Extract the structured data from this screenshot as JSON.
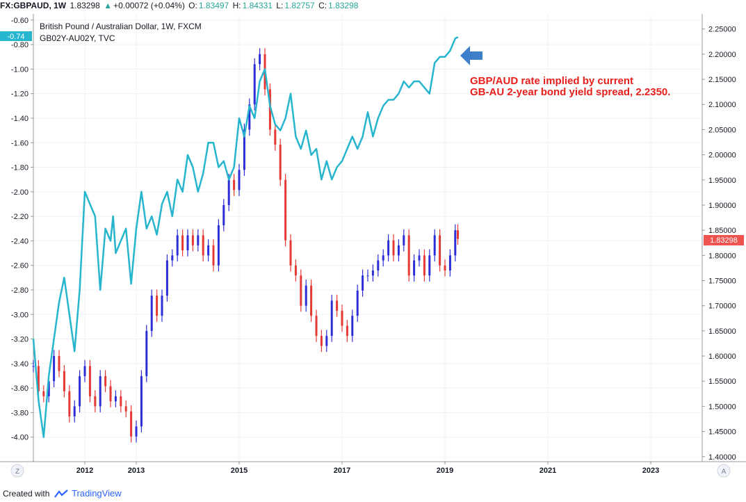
{
  "header": {
    "symbol": "FX:GBPAUD, 1W",
    "last": "1.83298",
    "change_arrow": "▲",
    "change": "+0.00072 (+0.04%)",
    "o_label": "O:",
    "o_value": "1.83497",
    "h_label": "H:",
    "h_value": "1.84331",
    "l_label": "L:",
    "l_value": "1.82757",
    "c_label": "C:",
    "c_value": "1.83298",
    "up_color": "#26a69a"
  },
  "legend": {
    "main_series": "British Pound / Australian Dollar, 1W, FXCM",
    "overlay_series": "GB02Y-AU02Y, TVC"
  },
  "annotation": {
    "line1": "GBP/AUD rate implied by current",
    "line2": "GB-AU 2-year bond yield spread, 2.2350.",
    "color": "#e8201c",
    "arrow_icon": "left-arrow-icon",
    "arrow_color": "#3d7fc9"
  },
  "price_badge": {
    "value": "1.83298",
    "color": "#ef5350"
  },
  "spread_badge": {
    "value": "-0.74",
    "color": "#26b5cc"
  },
  "axis_buttons": {
    "left": "Z",
    "right": "A"
  },
  "footer": {
    "prefix": "Created with",
    "brand": "TradingView"
  },
  "chart_data": {
    "type": "line",
    "x_axis": {
      "tick_labels": [
        "2012",
        "2013",
        "2015",
        "2017",
        "2019",
        "2021",
        "2023"
      ],
      "range": [
        2011.0,
        2024.0
      ]
    },
    "left_axis": {
      "tick_labels": [
        "-0.60",
        "-0.80",
        "-1.00",
        "-1.20",
        "-1.40",
        "-1.60",
        "-1.80",
        "-2.00",
        "-2.20",
        "-2.40",
        "-2.60",
        "-2.80",
        "-3.00",
        "-3.20",
        "-3.40",
        "-3.60",
        "-3.80",
        "-4.00"
      ],
      "range": [
        -4.2,
        -0.55
      ]
    },
    "right_axis": {
      "tick_labels": [
        "2.25000",
        "2.20000",
        "2.15000",
        "2.10000",
        "2.05000",
        "2.00000",
        "1.95000",
        "1.90000",
        "1.85000",
        "1.80000",
        "1.75000",
        "1.70000",
        "1.65000",
        "1.60000",
        "1.55000",
        "1.50000",
        "1.45000",
        "1.40000"
      ],
      "range": [
        1.39,
        2.28
      ]
    },
    "grid": true,
    "series": [
      {
        "name": "GB02Y-AU02Y, TVC",
        "axis": "left",
        "style": "line",
        "color": "#26b5cc",
        "x": [
          2011.0,
          2011.1,
          2011.2,
          2011.3,
          2011.4,
          2011.5,
          2011.6,
          2011.7,
          2011.8,
          2011.9,
          2012.0,
          2012.1,
          2012.2,
          2012.3,
          2012.4,
          2012.5,
          2012.55,
          2012.6,
          2012.7,
          2012.8,
          2012.9,
          2013.0,
          2013.1,
          2013.2,
          2013.3,
          2013.4,
          2013.5,
          2013.6,
          2013.7,
          2013.8,
          2013.9,
          2014.0,
          2014.1,
          2014.2,
          2014.3,
          2014.4,
          2014.5,
          2014.6,
          2014.7,
          2014.8,
          2014.9,
          2015.0,
          2015.1,
          2015.2,
          2015.3,
          2015.4,
          2015.5,
          2015.6,
          2015.7,
          2015.8,
          2015.9,
          2016.0,
          2016.1,
          2016.2,
          2016.3,
          2016.4,
          2016.5,
          2016.6,
          2016.7,
          2016.8,
          2016.9,
          2017.0,
          2017.1,
          2017.2,
          2017.3,
          2017.4,
          2017.5,
          2017.6,
          2017.7,
          2017.8,
          2017.9,
          2018.0,
          2018.1,
          2018.2,
          2018.3,
          2018.4,
          2018.5,
          2018.6,
          2018.7,
          2018.8,
          2018.9,
          2019.0,
          2019.1,
          2019.2,
          2019.25
        ],
        "values": [
          -3.2,
          -3.7,
          -4.0,
          -3.5,
          -3.2,
          -2.9,
          -2.7,
          -3.0,
          -3.3,
          -2.8,
          -2.0,
          -2.1,
          -2.2,
          -2.8,
          -2.3,
          -2.4,
          -2.2,
          -2.5,
          -2.4,
          -2.3,
          -2.75,
          -2.3,
          -2.0,
          -2.3,
          -2.2,
          -2.35,
          -2.1,
          -2.0,
          -2.2,
          -1.9,
          -2.0,
          -1.7,
          -1.8,
          -2.0,
          -1.85,
          -1.6,
          -1.6,
          -1.8,
          -1.75,
          -1.9,
          -1.8,
          -1.4,
          -1.55,
          -1.3,
          -1.4,
          -1.1,
          -1.0,
          -1.3,
          -1.45,
          -1.5,
          -1.4,
          -1.2,
          -1.55,
          -1.65,
          -1.5,
          -1.7,
          -1.65,
          -1.9,
          -1.75,
          -1.9,
          -1.8,
          -1.75,
          -1.65,
          -1.55,
          -1.65,
          -1.55,
          -1.35,
          -1.55,
          -1.4,
          -1.3,
          -1.25,
          -1.25,
          -1.2,
          -1.1,
          -1.15,
          -1.1,
          -1.1,
          -1.15,
          -1.2,
          -0.95,
          -0.9,
          -0.9,
          -0.85,
          -0.75,
          -0.74
        ]
      },
      {
        "name": "British Pound / Australian Dollar, 1W, FXCM",
        "axis": "right",
        "style": "candles",
        "up_color": "#2c2dd6",
        "down_color": "#e53935",
        "x": [
          2011.0,
          2011.1,
          2011.2,
          2011.3,
          2011.4,
          2011.5,
          2011.6,
          2011.7,
          2011.8,
          2011.9,
          2012.0,
          2012.1,
          2012.2,
          2012.3,
          2012.4,
          2012.5,
          2012.6,
          2012.7,
          2012.8,
          2012.9,
          2013.0,
          2013.1,
          2013.2,
          2013.3,
          2013.4,
          2013.5,
          2013.6,
          2013.7,
          2013.8,
          2013.9,
          2014.0,
          2014.1,
          2014.2,
          2014.3,
          2014.4,
          2014.5,
          2014.6,
          2014.7,
          2014.8,
          2014.9,
          2015.0,
          2015.1,
          2015.2,
          2015.3,
          2015.4,
          2015.5,
          2015.6,
          2015.7,
          2015.8,
          2015.9,
          2016.0,
          2016.1,
          2016.2,
          2016.3,
          2016.4,
          2016.5,
          2016.6,
          2016.7,
          2016.8,
          2016.9,
          2017.0,
          2017.1,
          2017.2,
          2017.3,
          2017.4,
          2017.5,
          2017.6,
          2017.7,
          2017.8,
          2017.9,
          2018.0,
          2018.1,
          2018.2,
          2018.3,
          2018.4,
          2018.5,
          2018.6,
          2018.7,
          2018.8,
          2018.9,
          2019.0,
          2019.1,
          2019.2,
          2019.25
        ],
        "values": [
          1.58,
          1.53,
          1.52,
          1.55,
          1.6,
          1.57,
          1.53,
          1.48,
          1.5,
          1.56,
          1.58,
          1.52,
          1.5,
          1.56,
          1.54,
          1.51,
          1.52,
          1.5,
          1.49,
          1.44,
          1.46,
          1.56,
          1.65,
          1.72,
          1.68,
          1.72,
          1.79,
          1.8,
          1.84,
          1.81,
          1.84,
          1.82,
          1.84,
          1.8,
          1.82,
          1.78,
          1.86,
          1.9,
          1.95,
          1.93,
          1.97,
          2.05,
          2.1,
          2.18,
          2.2,
          2.13,
          2.05,
          2.02,
          1.95,
          1.83,
          1.78,
          1.76,
          1.7,
          1.74,
          1.68,
          1.64,
          1.62,
          1.64,
          1.71,
          1.69,
          1.66,
          1.64,
          1.68,
          1.73,
          1.76,
          1.76,
          1.77,
          1.79,
          1.8,
          1.83,
          1.8,
          1.82,
          1.84,
          1.76,
          1.79,
          1.8,
          1.76,
          1.8,
          1.84,
          1.78,
          1.77,
          1.8,
          1.85,
          1.83298
        ]
      }
    ]
  }
}
